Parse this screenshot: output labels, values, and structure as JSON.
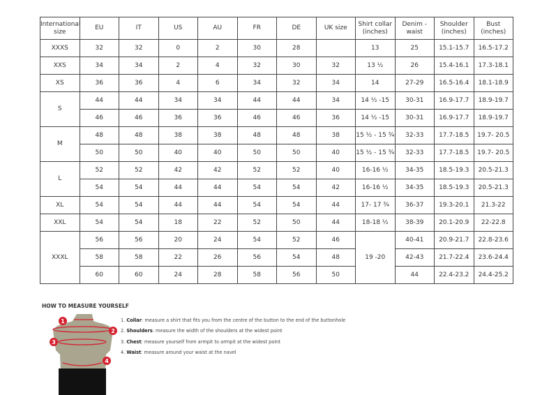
{
  "headers": [
    "International size",
    "EU",
    "IT",
    "US",
    "AU",
    "FR",
    "DE",
    "UK size",
    "Shirt collar (inches)",
    "Denim - waist",
    "Shoulder (inches)",
    "Bust (inches)"
  ],
  "groups": [
    {
      "size": "XXXS",
      "rows": [
        [
          "32",
          "32",
          "0",
          "2",
          "30",
          "28",
          "",
          "13",
          "25",
          "15.1-15.7",
          "16.5-17.2"
        ]
      ]
    },
    {
      "size": "XXS",
      "rows": [
        [
          "34",
          "34",
          "2",
          "4",
          "32",
          "30",
          "32",
          "13 ½",
          "26",
          "15.4-16.1",
          "17.3-18.1"
        ]
      ]
    },
    {
      "size": "XS",
      "rows": [
        [
          "36",
          "36",
          "4",
          "6",
          "34",
          "32",
          "34",
          "14",
          "27-29",
          "16.5-16.4",
          "18.1-18.9"
        ]
      ]
    },
    {
      "size": "S",
      "rows": [
        [
          "44",
          "44",
          "34",
          "34",
          "44",
          "44",
          "34",
          "14 ½ -15",
          "30-31",
          "16.9-17.7",
          "18.9-19.7"
        ],
        [
          "46",
          "46",
          "36",
          "36",
          "46",
          "46",
          "36",
          "14 ½ -15",
          "30-31",
          "16.9-17.7",
          "18.9-19.7"
        ]
      ]
    },
    {
      "size": "M",
      "rows": [
        [
          "48",
          "48",
          "38",
          "38",
          "48",
          "48",
          "38",
          "15 ½ - 15 ¾",
          "32-33",
          "17.7-18.5",
          "19.7- 20.5"
        ],
        [
          "50",
          "50",
          "40",
          "40",
          "50",
          "50",
          "40",
          "15 ½ - 15 ¾",
          "32-33",
          "17.7-18.5",
          "19.7- 20.5"
        ]
      ]
    },
    {
      "size": "L",
      "rows": [
        [
          "52",
          "52",
          "42",
          "42",
          "52",
          "52",
          "40",
          "16-16 ½",
          "34-35",
          "18.5-19.3",
          "20.5-21.3"
        ],
        [
          "54",
          "54",
          "44",
          "44",
          "54",
          "54",
          "42",
          "16-16 ½",
          "34-35",
          "18.5-19.3",
          "20.5-21.3"
        ]
      ]
    },
    {
      "size": "XL",
      "rows": [
        [
          "54",
          "54",
          "44",
          "44",
          "54",
          "54",
          "44",
          "17- 17 ¾",
          "36-37",
          "19.3-20.1",
          "21.3-22"
        ]
      ]
    },
    {
      "size": "XXL",
      "rows": [
        [
          "54",
          "54",
          "18",
          "22",
          "52",
          "50",
          "44",
          "18-18 ½",
          "38-39",
          "20.1-20.9",
          "22-22.8"
        ]
      ]
    },
    {
      "size": "XXXL",
      "shared_collar": "19 -20",
      "rows": [
        [
          "56",
          "56",
          "20",
          "24",
          "54",
          "52",
          "46",
          null,
          "40-41",
          "20.9-21.7",
          "22.8-23.6"
        ],
        [
          "58",
          "58",
          "22",
          "26",
          "56",
          "54",
          "48",
          null,
          "42-43",
          "21.7-22.4",
          "23.6-24.4"
        ],
        [
          "60",
          "60",
          "24",
          "28",
          "58",
          "56",
          "50",
          null,
          "44",
          "22.4-23.2",
          "24.4-25.2"
        ]
      ]
    }
  ],
  "measure": {
    "title": "HOW TO MEASURE YOURSELF",
    "steps": [
      {
        "num": "1.",
        "term": "Collar",
        "text": ": measure a shirt that fits you from the centre of the button to the end of the buttonhole"
      },
      {
        "num": "2.",
        "term": "Shoulders",
        "text": ": measure the width of the shoulders at the widest point"
      },
      {
        "num": "3.",
        "term": "Chest",
        "text": ": measure yourself from armpit to armpit at the widest point"
      },
      {
        "num": "4.",
        "term": "Waist",
        "text": ": measure around your waist at the navel"
      }
    ],
    "markers": [
      "1",
      "2",
      "3",
      "4"
    ],
    "accent": "#d6202f"
  }
}
